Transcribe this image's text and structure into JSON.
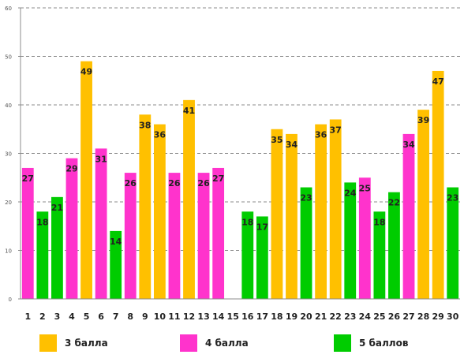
{
  "chart_data": {
    "type": "bar",
    "title": "",
    "xlabel": "",
    "ylabel": "",
    "ylim": [
      0,
      60
    ],
    "yticks": [
      0,
      10,
      20,
      30,
      40,
      50,
      60
    ],
    "grid": true,
    "legend_position": "bottom",
    "categories": [
      "1",
      "2",
      "3",
      "4",
      "5",
      "6",
      "7",
      "8",
      "9",
      "10",
      "11",
      "12",
      "13",
      "14",
      "15",
      "16",
      "17",
      "18",
      "19",
      "20",
      "21",
      "22",
      "23",
      "24",
      "25",
      "26",
      "27",
      "28",
      "29",
      "30"
    ],
    "values": [
      27,
      18,
      21,
      29,
      49,
      31,
      14,
      26,
      38,
      36,
      26,
      41,
      26,
      27,
      null,
      18,
      17,
      35,
      34,
      23,
      36,
      37,
      24,
      25,
      18,
      22,
      34,
      39,
      47,
      23
    ],
    "score_groups": [
      4,
      5,
      5,
      4,
      3,
      4,
      5,
      4,
      3,
      3,
      4,
      3,
      4,
      4,
      null,
      5,
      5,
      3,
      3,
      5,
      3,
      3,
      5,
      4,
      5,
      5,
      4,
      3,
      3,
      5
    ],
    "series": [
      {
        "key": 3,
        "name": "3 балла",
        "color": "#FFC000"
      },
      {
        "key": 4,
        "name": "4 балла",
        "color": "#FF33CC"
      },
      {
        "key": 5,
        "name": "5 баллов",
        "color": "#00CC00"
      }
    ]
  }
}
